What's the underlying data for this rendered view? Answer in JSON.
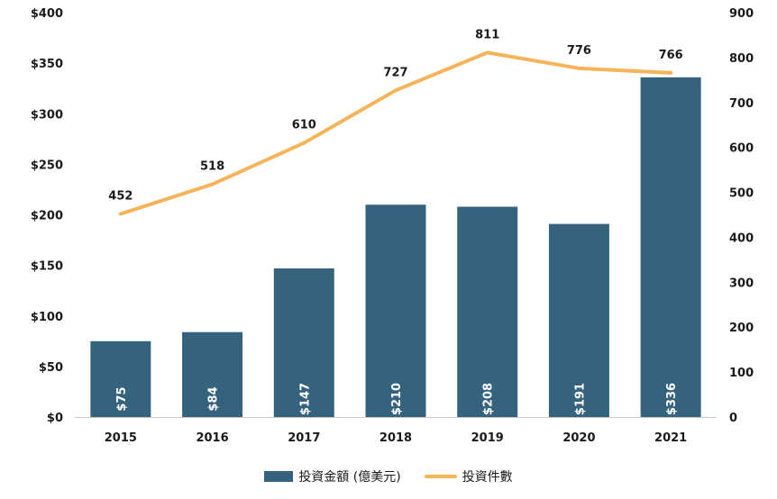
{
  "chart_data": {
    "type": "bar",
    "categories": [
      "2015",
      "2016",
      "2017",
      "2018",
      "2019",
      "2020",
      "2021"
    ],
    "series": [
      {
        "name": "投資金額 (億美元)",
        "type": "bar",
        "axis": "left",
        "values": [
          75,
          84,
          147,
          210,
          208,
          191,
          336
        ],
        "labels": [
          "$75",
          "$84",
          "$147",
          "$210",
          "$208",
          "$191",
          "$336"
        ],
        "color": "#35637d"
      },
      {
        "name": "投資件數",
        "type": "line",
        "axis": "right",
        "values": [
          452,
          518,
          610,
          727,
          811,
          776,
          766
        ],
        "labels": [
          "452",
          "518",
          "610",
          "727",
          "811",
          "776",
          "766"
        ],
        "color": "#f5b45a"
      }
    ],
    "y_left": {
      "lim": [
        0,
        400
      ],
      "ticks": [
        0,
        50,
        100,
        150,
        200,
        250,
        300,
        350,
        400
      ],
      "tick_labels": [
        "$0",
        "$50",
        "$100",
        "$150",
        "$200",
        "$250",
        "$300",
        "$350",
        "$400"
      ]
    },
    "y_right": {
      "lim": [
        0,
        900
      ],
      "ticks": [
        0,
        100,
        200,
        300,
        400,
        500,
        600,
        700,
        800,
        900
      ],
      "tick_labels": [
        "0",
        "100",
        "200",
        "300",
        "400",
        "500",
        "600",
        "700",
        "800",
        "900"
      ]
    },
    "grid": false,
    "legend_position": "bottom"
  },
  "legend": {
    "bar_label": "投資金額 (億美元)",
    "line_label": "投資件數"
  }
}
